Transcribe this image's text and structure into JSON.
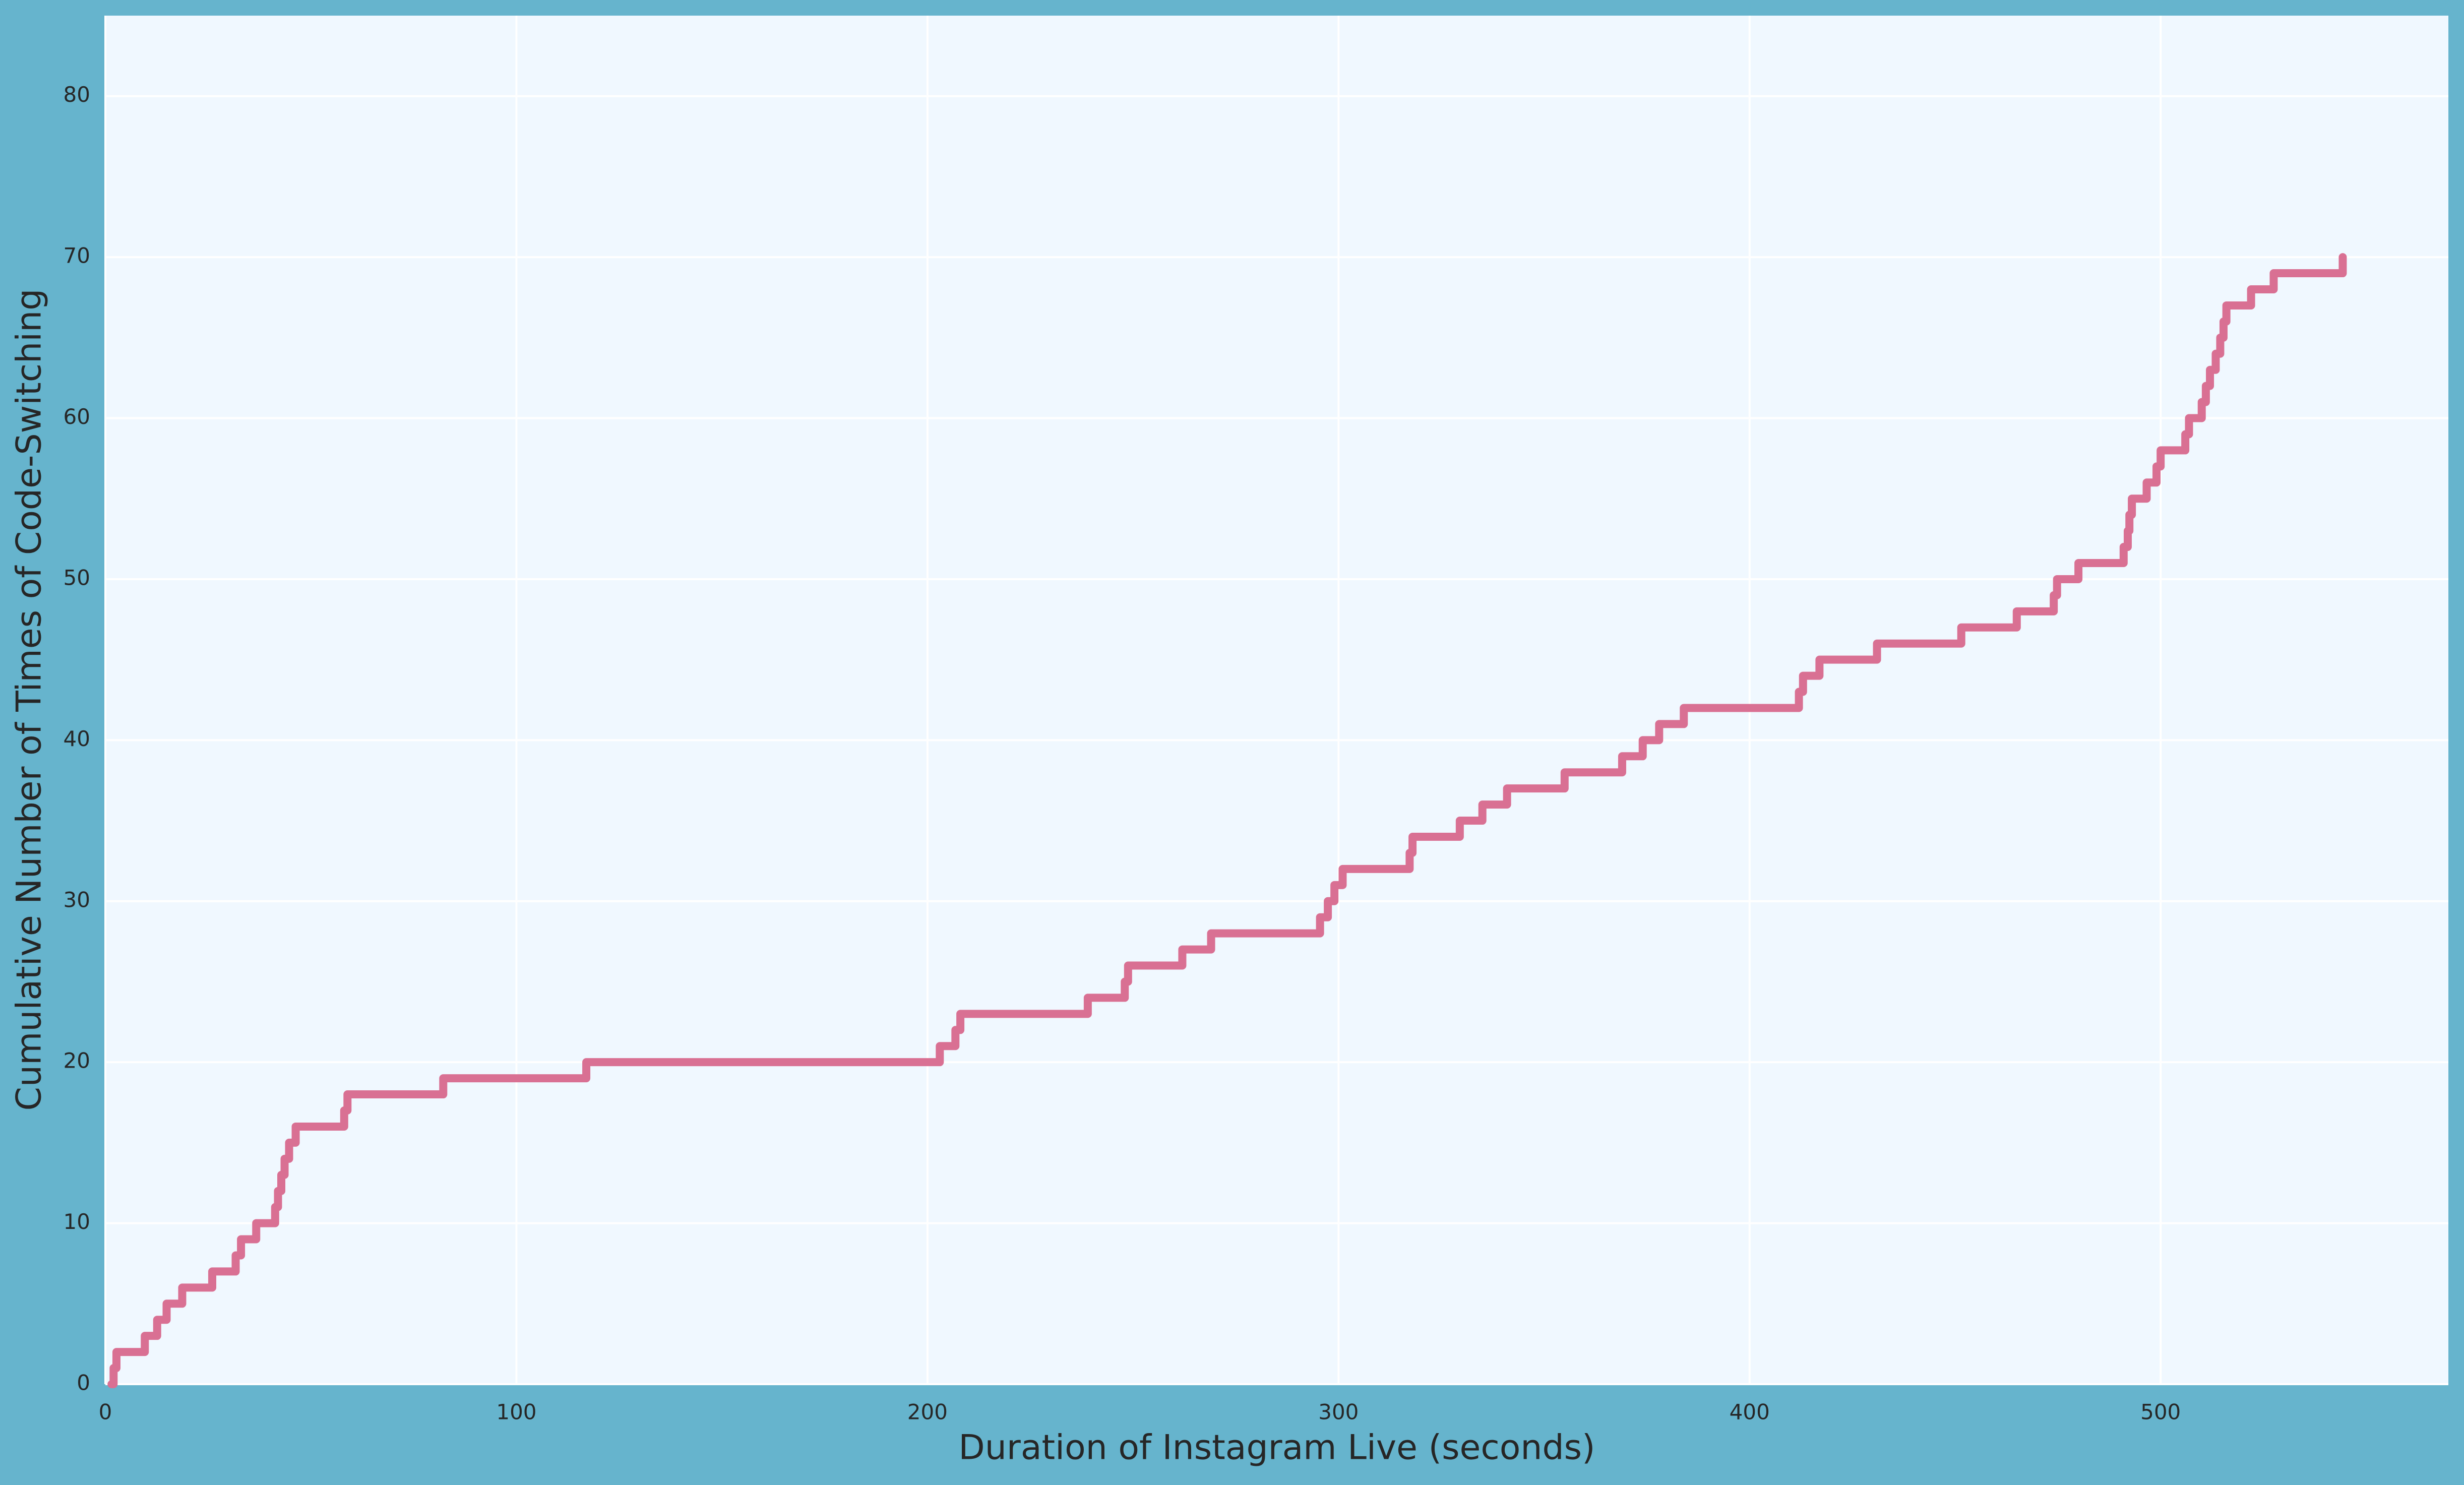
{
  "chart_data": {
    "type": "line",
    "drawstyle": "steps-post",
    "xlabel": "Duration of Instagram Live (seconds)",
    "ylabel": "Cumulative Number of Times of Code-Switching",
    "x": [
      1.5,
      2,
      2.7,
      9.6,
      12.6,
      14.9,
      18.7,
      26,
      31.7,
      33,
      36.7,
      41.3,
      42,
      42.8,
      43.6,
      44.7,
      46.3,
      58.1,
      58.9,
      82.2,
      117,
      203,
      206.8,
      208,
      239,
      248,
      248.8,
      262,
      269,
      295.5,
      297.4,
      299,
      301,
      317.3,
      318,
      329.5,
      335,
      341,
      355,
      369,
      374,
      378,
      384,
      412,
      413,
      417,
      431,
      451.5,
      465,
      474,
      474.8,
      480,
      491,
      492,
      492.4,
      493,
      496.6,
      499,
      500,
      506,
      506.9,
      510,
      511,
      512,
      513.4,
      514.5,
      515.3,
      516,
      522,
      527.5,
      544.3
    ],
    "series": [
      {
        "color": "#d97093",
        "values": [
          0,
          1,
          2,
          3,
          4,
          5,
          6,
          7,
          8,
          9,
          10,
          11,
          12,
          13,
          14,
          15,
          16,
          17,
          18,
          19,
          20,
          21,
          22,
          23,
          24,
          25,
          26,
          27,
          28,
          29,
          30,
          31,
          32,
          33,
          34,
          35,
          36,
          37,
          38,
          39,
          40,
          41,
          42,
          43,
          44,
          45,
          46,
          47,
          48,
          49,
          50,
          51,
          52,
          53,
          54,
          55,
          56,
          57,
          58,
          59,
          60,
          61,
          62,
          63,
          64,
          65,
          66,
          67,
          68,
          69,
          70
        ]
      }
    ],
    "xlim": [
      0,
      570
    ],
    "ylim": [
      0,
      85
    ],
    "xticks": [
      0,
      100,
      200,
      300,
      400,
      500
    ],
    "yticks": [
      0,
      10,
      20,
      30,
      40,
      50,
      60,
      70,
      80
    ],
    "grid": true
  }
}
